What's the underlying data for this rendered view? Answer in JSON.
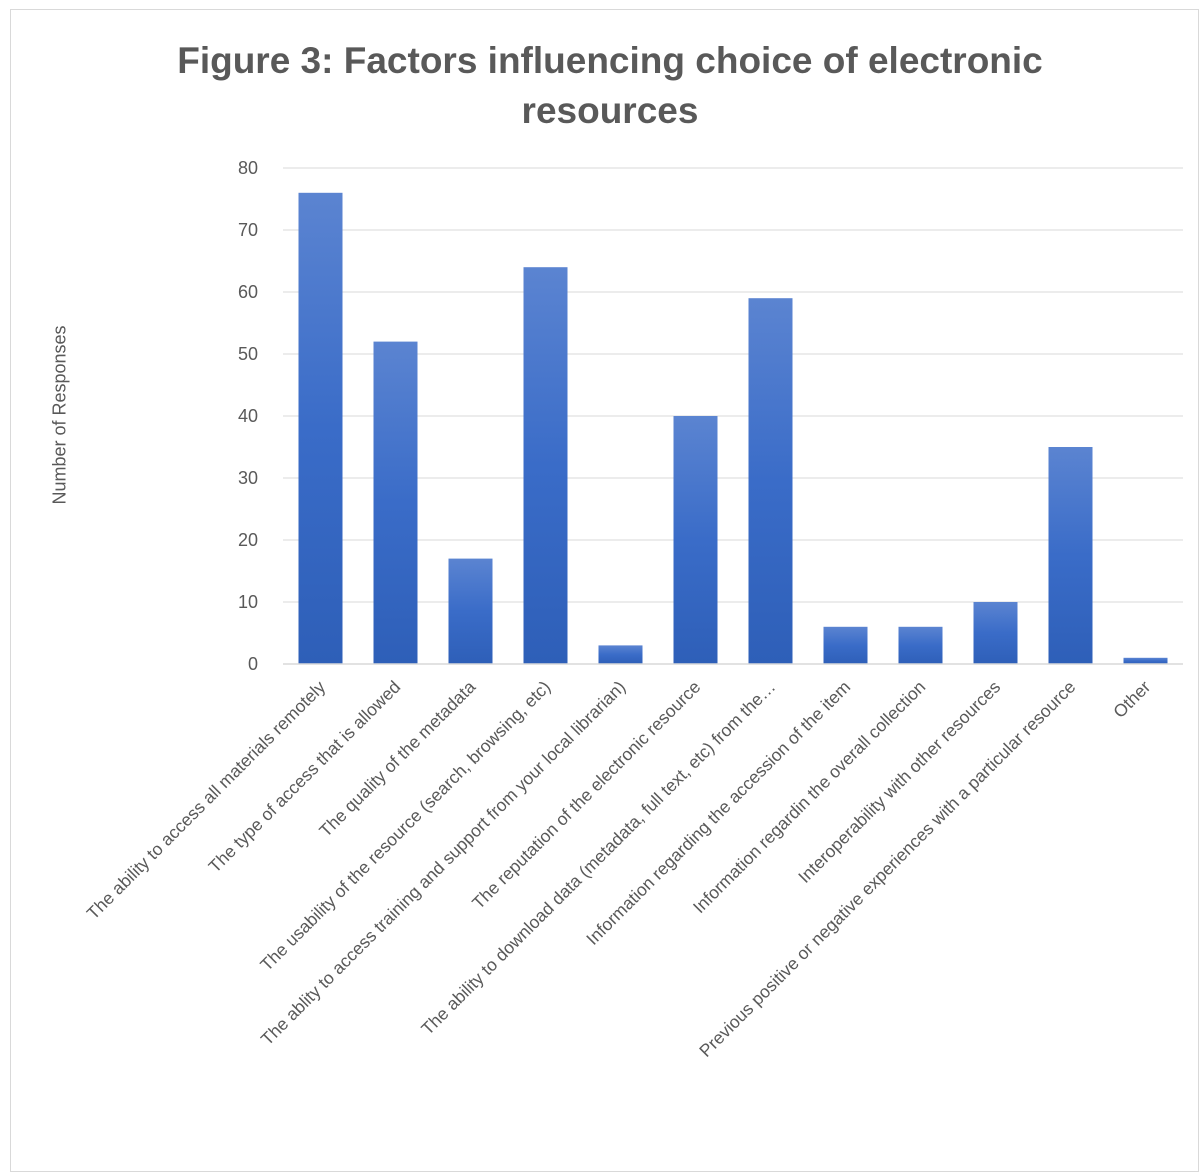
{
  "chart_data": {
    "type": "bar",
    "title_line1": "Figure 3: Factors influencing choice of electronic",
    "title_line2": "resources",
    "ylabel": "Number of Responses",
    "ylim": [
      0,
      80
    ],
    "yticks": [
      0,
      10,
      20,
      30,
      40,
      50,
      60,
      70,
      80
    ],
    "grid": true,
    "legend": "none",
    "bar_color": "#4472c4",
    "categories": [
      "The ability to access all materials remotely",
      "The type of access that is allowed",
      "The quality of the metadata",
      "The usability of the resource (search, browsing, etc)",
      "The ablity to access training and support from your local librarian)",
      "The reputation of the electronic resource",
      "The ability to download data (metadata, full text, etc) from the…",
      "Information regarding the accession of the item",
      "Information regardin the overall collection",
      "Interoperability with other resources",
      "Previous positive or negative experiences with a particular resource",
      "Other"
    ],
    "values": [
      76,
      52,
      17,
      64,
      3,
      40,
      59,
      6,
      6,
      10,
      35,
      1
    ]
  }
}
